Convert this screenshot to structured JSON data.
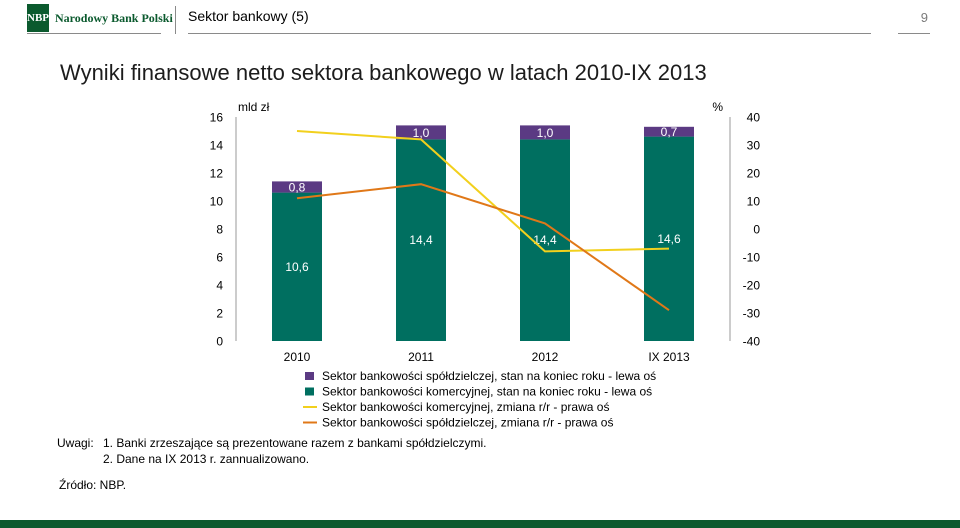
{
  "header": {
    "logo_abbrev": "NBP",
    "logo_name": "Narodowy Bank Polski",
    "section_title": "Sektor bankowy (5)",
    "page_number": "9"
  },
  "slide_title": "Wyniki finansowe netto sektora bankowego w latach 2010-IX 2013",
  "chart_data": {
    "type": "bar",
    "categories": [
      "2010",
      "2011",
      "2012",
      "IX 2013"
    ],
    "left_axis": {
      "unit_label": "mld zł",
      "range": [
        0,
        16
      ],
      "ticks": [
        "0",
        "2",
        "4",
        "6",
        "8",
        "10",
        "12",
        "14",
        "16"
      ]
    },
    "right_axis": {
      "unit_label": "%",
      "range": [
        -40,
        40
      ],
      "ticks": [
        "-40",
        "-30",
        "-20",
        "-10",
        "0",
        "10",
        "20",
        "30",
        "40"
      ]
    },
    "bars": [
      {
        "name": "Sektor bankowości spółdzielczej, stan na koniec roku - lewa oś",
        "color": "#5b3a83",
        "values": [
          0.8,
          1.0,
          1.0,
          0.7
        ],
        "labels": [
          "0,8",
          "1,0",
          "1,0",
          "0,7"
        ]
      },
      {
        "name": "Sektor bankowości komercyjnej, stan na koniec roku - lewa oś",
        "color": "#006f60",
        "values": [
          10.6,
          14.4,
          14.4,
          14.6
        ],
        "labels": [
          "10,6",
          "14,4",
          "14,4",
          "14,6"
        ]
      }
    ],
    "lines": [
      {
        "name": "Sektor bankowości komercyjnej, zmiana r/r - prawa oś",
        "color": "#f2d01d",
        "values": [
          35,
          32,
          -8,
          -7
        ]
      },
      {
        "name": "Sektor bankowości spółdzielczej, zmiana r/r - prawa oś",
        "color": "#e07818",
        "values": [
          11,
          16,
          2,
          -29
        ]
      }
    ],
    "legend_position": "bottom",
    "grid": false
  },
  "notes": {
    "label": "Uwagi:",
    "items": [
      "1. Banki zrzeszające są prezentowane razem z bankami spółdzielczymi.",
      "2. Dane na IX 2013 r. zannualizowano."
    ]
  },
  "source": "Źródło: NBP."
}
